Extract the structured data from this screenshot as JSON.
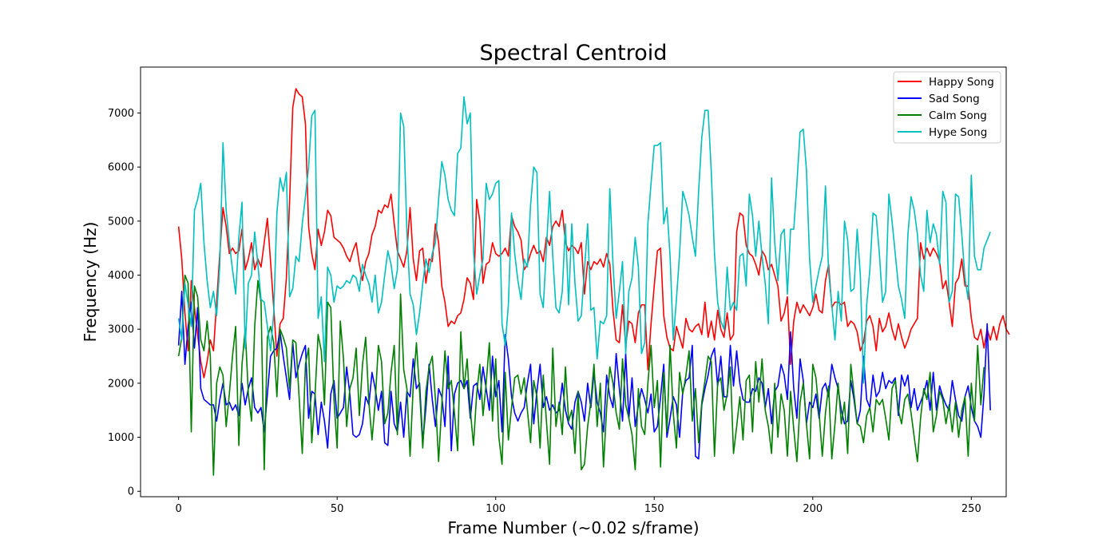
{
  "chart_data": {
    "type": "line",
    "title": "Spectral Centroid",
    "xlabel": "Frame Number (~0.02 s/frame)",
    "ylabel": "Frequency (Hz)",
    "xlim": [
      -12,
      261
    ],
    "ylim": [
      -100,
      7850
    ],
    "xticks": [
      0,
      50,
      100,
      150,
      200,
      250
    ],
    "yticks": [
      0,
      1000,
      2000,
      3000,
      4000,
      5000,
      6000,
      7000
    ],
    "grid": false,
    "legend_position": "top-right",
    "x_start": 0,
    "x_step": 1,
    "series": [
      {
        "name": "Happy Song",
        "color": "#ff0000",
        "values": [
          4900,
          4300,
          3300,
          2600,
          3900,
          3400,
          2900,
          2400,
          2100,
          2400,
          2800,
          2600,
          3500,
          4400,
          5250,
          4900,
          4400,
          4500,
          4400,
          4450,
          4850,
          4100,
          4300,
          4600,
          4100,
          4300,
          4150,
          4600,
          5050,
          4250,
          3400,
          2500,
          3100,
          3200,
          3950,
          5350,
          7100,
          7450,
          7350,
          7300,
          6800,
          4900,
          4400,
          4100,
          4850,
          4550,
          4800,
          5200,
          5100,
          4700,
          4650,
          4600,
          4500,
          4350,
          4250,
          4450,
          4600,
          4200,
          3900,
          4250,
          4400,
          4750,
          4900,
          5200,
          5150,
          5300,
          5250,
          5500,
          4950,
          4450,
          4300,
          4150,
          4450,
          5250,
          4300,
          3900,
          4450,
          4500,
          3850,
          4300,
          4250,
          4950,
          4600,
          3800,
          3500,
          3050,
          3150,
          3100,
          3250,
          3300,
          3550,
          3950,
          3850,
          3550,
          5400,
          5000,
          3850,
          4200,
          4250,
          4600,
          4400,
          4350,
          4400,
          4500,
          4350,
          5100,
          4900,
          4800,
          4650,
          4100,
          4200,
          4400,
          4550,
          4400,
          4450,
          4250,
          4700,
          4550,
          4900,
          5000,
          4900,
          5200,
          4600,
          4450,
          4550,
          4500,
          4400,
          4600,
          3650,
          4250,
          4100,
          4250,
          4200,
          4300,
          4150,
          4400,
          4200,
          3350,
          2800,
          2750,
          3450,
          2700,
          3150,
          3100,
          2750,
          3300,
          3450,
          3450,
          2250,
          3100,
          3800,
          4450,
          4500,
          3250,
          2850,
          2650,
          2600,
          3050,
          2850,
          2650,
          3200,
          3000,
          2950,
          3050,
          3100,
          2900,
          3500,
          2850,
          3150,
          2800,
          3350,
          3000,
          2850,
          3300,
          2800,
          2900,
          4800,
          5150,
          5100,
          4550,
          4400,
          4350,
          4200,
          4000,
          4450,
          4350,
          4100,
          4200,
          4000,
          3800,
          3150,
          3300,
          3600,
          2350,
          3150,
          3500,
          3300,
          3450,
          3350,
          3250,
          3400,
          3650,
          3350,
          3300,
          3900,
          4200,
          3400,
          3500,
          3500,
          3450,
          3500,
          3050,
          3150,
          3100,
          2950,
          2600,
          2750,
          3150,
          3250,
          3050,
          2600,
          3200,
          2950,
          3050,
          3300,
          3000,
          2800,
          3100,
          2850,
          2650,
          2800,
          3000,
          3100,
          3200,
          4600,
          4300,
          4500,
          4350,
          4500,
          4400,
          4250,
          3750,
          3900,
          3500,
          3050,
          3850,
          3950,
          4300,
          3800,
          3800,
          3200,
          2850,
          2800,
          3000,
          2650,
          3000,
          2800,
          3050,
          2800,
          3100,
          3250,
          3000,
          2900
        ]
      },
      {
        "name": "Sad Song",
        "color": "#0000ff",
        "values": [
          2700,
          3700,
          2350,
          3050,
          3500,
          2650,
          3400,
          1900,
          1700,
          1650,
          1600,
          1600,
          1300,
          1700,
          2000,
          1600,
          1650,
          1500,
          1600,
          1400,
          2000,
          1600,
          1900,
          2100,
          1550,
          1450,
          1550,
          1100,
          1800,
          2500,
          2600,
          2650,
          2950,
          2500,
          2100,
          1700,
          2750,
          2100,
          2350,
          2550,
          2700,
          1350,
          1850,
          1800,
          1050,
          1650,
          1300,
          800,
          1800,
          2050,
          1350,
          1450,
          1550,
          2300,
          1800,
          1050,
          1000,
          1050,
          1250,
          1750,
          1600,
          2200,
          1900,
          1500,
          1850,
          900,
          850,
          1850,
          1250,
          1100,
          1650,
          1000,
          1850,
          1750,
          2450,
          1900,
          2000,
          900,
          1550,
          2350,
          1700,
          1200,
          1900,
          1750,
          1200,
          2500,
          750,
          1800,
          2000,
          2050,
          1900,
          2050,
          1350,
          1950,
          2000,
          1700,
          2300,
          1900,
          1500,
          2500,
          1750,
          2050,
          1100,
          2900,
          2450,
          1750,
          1450,
          1300,
          1450,
          1550,
          2000,
          2350,
          1250,
          1850,
          2350,
          1550,
          1750,
          1500,
          1600,
          1450,
          1500,
          2000,
          1500,
          1250,
          1150,
          1650,
          1850,
          1650,
          1300,
          2000,
          1550,
          2200,
          1650,
          1450,
          1100,
          2150,
          1750,
          1550,
          2550,
          1900,
          1300,
          2550,
          1350,
          2100,
          1200,
          1600,
          1900,
          1700,
          1450,
          1800,
          1100,
          1200,
          1750,
          2350,
          1000,
          1350,
          1750,
          1600,
          1000,
          1850,
          2050,
          2100,
          2700,
          650,
          600,
          1600,
          1900,
          2150,
          2500,
          2650,
          1950,
          2500,
          1750,
          1750,
          2700,
          1950,
          2600,
          2000,
          1700,
          1650,
          1650,
          1900,
          1850,
          2100,
          2000,
          1550,
          1900,
          1250,
          1850,
          1950,
          2350,
          2150,
          1700,
          2950,
          1900,
          1350,
          2450,
          2050,
          1250,
          1650,
          1550,
          1800,
          1350,
          1900,
          2000,
          1750,
          2350,
          2100,
          1900,
          1500,
          1250,
          1300,
          2050,
          1700,
          1250,
          1500,
          2500,
          1700,
          1550,
          2150,
          1750,
          1850,
          2200,
          1900,
          2050,
          2000,
          2100,
          1400,
          2150,
          1950,
          2150,
          1550,
          1900,
          1500,
          1650,
          1800,
          2050,
          1500,
          2200,
          1500,
          1950,
          1750,
          1600,
          1500,
          2050,
          1700,
          1400,
          1300,
          1750,
          1950,
          1550,
          1300,
          1200,
          1000,
          1800,
          3100,
          1500
        ]
      },
      {
        "name": "Calm Song",
        "color": "#008000",
        "values": [
          2500,
          2850,
          4000,
          3850,
          1100,
          3800,
          3600,
          2800,
          2600,
          3150,
          2500,
          300,
          2000,
          2300,
          2150,
          1200,
          1800,
          2500,
          3050,
          850,
          2350,
          3000,
          1800,
          1300,
          3050,
          3900,
          3500,
          400,
          2850,
          3050,
          2750,
          1750,
          3000,
          2850,
          2650,
          1900,
          2800,
          2750,
          1750,
          700,
          2350,
          2650,
          900,
          1750,
          2900,
          2600,
          1600,
          3500,
          3400,
          1700,
          800,
          3150,
          2450,
          1200,
          1900,
          2100,
          2650,
          1400,
          2350,
          2850,
          1650,
          950,
          1650,
          2700,
          2400,
          1250,
          1450,
          2200,
          2700,
          1050,
          3650,
          2250,
          1900,
          650,
          1950,
          2750,
          1850,
          800,
          1850,
          2300,
          2500,
          1700,
          550,
          1600,
          2600,
          1900,
          2050,
          1450,
          750,
          2950,
          1900,
          2450,
          1500,
          850,
          1800,
          2350,
          1400,
          2000,
          2750,
          1300,
          2450,
          1000,
          500,
          2200,
          950,
          1550,
          2100,
          2150,
          1800,
          2100,
          1500,
          900,
          2050,
          1750,
          800,
          2150,
          1300,
          500,
          2650,
          1200,
          1650,
          1050,
          2300,
          1300,
          1500,
          700,
          1850,
          400,
          500,
          1200,
          1650,
          2350,
          1200,
          2000,
          450,
          1550,
          2300,
          2000,
          1450,
          1150,
          2450,
          1600,
          1350,
          1050,
          400,
          1900,
          1200,
          1050,
          2000,
          2700,
          1550,
          2050,
          450,
          2200,
          1100,
          2700,
          1450,
          800,
          2200,
          1800,
          2150,
          2600,
          1300,
          1900,
          900,
          1650,
          2050,
          2500,
          2400,
          650,
          2000,
          2100,
          1500,
          1800,
          2300,
          700,
          1200,
          1750,
          950,
          2050,
          2150,
          1100,
          2400,
          1650,
          2450,
          1500,
          1200,
          700,
          2000,
          1000,
          1800,
          1500,
          650,
          1850,
          1150,
          550,
          1650,
          2000,
          1250,
          600,
          2350,
          2100,
          1450,
          650,
          1450,
          1950,
          600,
          1250,
          2000,
          1250,
          1650,
          700,
          2350,
          1800,
          1250,
          1200,
          900,
          1400,
          1550,
          1100,
          1700,
          1600,
          1700,
          1350,
          950,
          1900,
          2050,
          1500,
          1250,
          1700,
          1800,
          1450,
          1000,
          550,
          1350,
          1900,
          1700,
          2200,
          1100,
          1400,
          1850,
          1700,
          1250,
          1600,
          1100,
          1650,
          1000,
          1500,
          1750,
          650,
          2000,
          1300,
          2700,
          1600,
          2300
        ]
      },
      {
        "name": "Hype Song",
        "color": "#00bfbf",
        "values": [
          3200,
          2800,
          3850,
          3450,
          3050,
          5200,
          5400,
          5700,
          4600,
          3900,
          3400,
          3700,
          3250,
          4200,
          6450,
          5200,
          4600,
          4100,
          3650,
          4700,
          5350,
          2650,
          3850,
          4000,
          4800,
          4200,
          3550,
          3500,
          3050,
          2600,
          3300,
          5150,
          5800,
          5550,
          5900,
          3600,
          3750,
          4350,
          4250,
          4950,
          5450,
          6000,
          6950,
          7050,
          3200,
          3600,
          2400,
          4150,
          4000,
          3500,
          3800,
          3750,
          3800,
          3900,
          3850,
          4000,
          3950,
          3700,
          4200,
          4000,
          3850,
          3500,
          4000,
          3300,
          3500,
          4000,
          4450,
          4200,
          3750,
          4100,
          7000,
          6750,
          4800,
          3650,
          3450,
          2900,
          3300,
          3850,
          4300,
          4050,
          4400,
          4600,
          5400,
          6100,
          5850,
          5400,
          5200,
          5100,
          6250,
          6350,
          7300,
          6800,
          7000,
          4450,
          3650,
          4000,
          4300,
          5700,
          5400,
          5500,
          5700,
          5750,
          3100,
          2700,
          3450,
          5150,
          4400,
          3900,
          3550,
          4300,
          4150,
          5300,
          6000,
          5900,
          3650,
          3400,
          4500,
          5550,
          4350,
          3400,
          3300,
          3700,
          4950,
          3450,
          4950,
          3850,
          3150,
          3250,
          4100,
          4950,
          3350,
          3400,
          2450,
          3150,
          3100,
          3250,
          5600,
          4200,
          3200,
          3700,
          4250,
          2550,
          3700,
          3950,
          4700,
          4150,
          2550,
          2750,
          4950,
          5700,
          6400,
          6400,
          6450,
          4950,
          5250,
          4350,
          2800,
          3550,
          4400,
          5550,
          5350,
          5100,
          4700,
          4350,
          5550,
          6550,
          7050,
          7050,
          5900,
          4400,
          3500,
          3150,
          3000,
          4150,
          3350,
          3500,
          3350,
          4350,
          4400,
          3800,
          5500,
          5100,
          4350,
          5000,
          4350,
          3850,
          3100,
          5800,
          4600,
          3900,
          4750,
          4850,
          3650,
          4850,
          4850,
          5700,
          6650,
          6700,
          5950,
          4300,
          3500,
          3800,
          4100,
          4350,
          5650,
          4050,
          3450,
          2800,
          3700,
          3150,
          5000,
          4650,
          3700,
          3750,
          4850,
          4000,
          2000,
          3450,
          4100,
          5150,
          5100,
          4400,
          3500,
          3700,
          5500,
          5000,
          4400,
          3800,
          3550,
          3200,
          4750,
          5450,
          5200,
          4750,
          4000,
          3700,
          5200,
          4600,
          4950,
          4750,
          4200,
          5550,
          5350,
          3500,
          3700,
          5500,
          5450,
          4750,
          3950,
          3550,
          5850,
          4350,
          4100,
          4100,
          4500,
          4650,
          4800
        ]
      }
    ]
  }
}
